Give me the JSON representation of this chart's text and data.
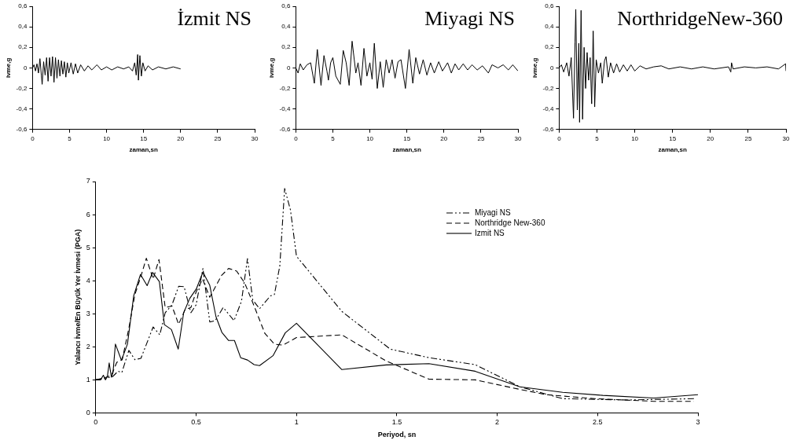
{
  "chart_data": [
    {
      "type": "line",
      "title": "İzmit NS",
      "xlabel": "zaman,sn",
      "ylabel": "ivme,g",
      "marker": "none",
      "xlim": [
        0,
        30
      ],
      "xticks": [
        0,
        5,
        10,
        15,
        20,
        25,
        30
      ],
      "ylim": [
        -0.6,
        0.6
      ],
      "yticks": [
        {
          "value": -0.6,
          "label": "-0,6"
        },
        {
          "value": -0.4,
          "label": "-0,4"
        },
        {
          "value": -0.2,
          "label": "-0,2"
        },
        {
          "value": 0,
          "label": "0"
        },
        {
          "value": 0.2,
          "label": "0,2"
        },
        {
          "value": 0.4,
          "label": "0,4"
        },
        {
          "value": 0.6,
          "label": "0,6"
        }
      ],
      "x": [
        0,
        0.2,
        0.4,
        0.6,
        0.8,
        1.0,
        1.2,
        1.3,
        1.5,
        1.7,
        1.9,
        2.1,
        2.3,
        2.5,
        2.7,
        2.9,
        3.1,
        3.3,
        3.5,
        3.7,
        3.9,
        4.1,
        4.3,
        4.5,
        4.7,
        4.9,
        5.2,
        5.5,
        5.8,
        6.1,
        6.5,
        7,
        7.5,
        8,
        8.7,
        9.3,
        10,
        10.7,
        11.5,
        12.3,
        13,
        13.5,
        13.8,
        14.0,
        14.2,
        14.3,
        14.5,
        14.7,
        14.9,
        15.2,
        15.6,
        16.2,
        17,
        18,
        19,
        20
      ],
      "series": [
        {
          "color": "#000000",
          "values": [
            0,
            0.03,
            -0.03,
            0.04,
            -0.05,
            0.09,
            -0.08,
            -0.16,
            0.06,
            -0.07,
            0.1,
            -0.13,
            0.1,
            -0.08,
            0.11,
            -0.14,
            0.1,
            -0.1,
            0.08,
            -0.08,
            0.07,
            -0.06,
            0.06,
            -0.09,
            0.05,
            -0.05,
            0.05,
            -0.06,
            0.04,
            -0.05,
            0.03,
            -0.03,
            0.02,
            -0.02,
            0.03,
            -0.02,
            0.01,
            -0.02,
            0.01,
            -0.01,
            0.01,
            -0.03,
            0.05,
            -0.07,
            0.13,
            -0.12,
            0.12,
            -0.08,
            0.05,
            -0.03,
            0.02,
            -0.02,
            0.01,
            -0.01,
            0.01,
            -0.01
          ]
        }
      ]
    },
    {
      "type": "line",
      "title": "Miyagi NS",
      "xlabel": "zaman,sn",
      "ylabel": "ivme,g",
      "marker": "none",
      "xlim": [
        0,
        30
      ],
      "xticks": [
        0,
        5,
        10,
        15,
        20,
        25,
        30
      ],
      "ylim": [
        -0.6,
        0.6
      ],
      "yticks": [
        {
          "value": -0.6,
          "label": "-0,6"
        },
        {
          "value": -0.4,
          "label": "-0,4"
        },
        {
          "value": -0.2,
          "label": "-0,2"
        },
        {
          "value": 0,
          "label": "0"
        },
        {
          "value": 0.2,
          "label": "0,2"
        },
        {
          "value": 0.4,
          "label": "0,4"
        },
        {
          "value": 0.6,
          "label": "0,6"
        }
      ],
      "x": [
        0,
        0.3,
        0.6,
        1,
        1.5,
        2,
        2.5,
        2.9,
        3.4,
        3.8,
        4.2,
        4.4,
        4.7,
        5,
        5.4,
        6,
        6.4,
        6.8,
        7.2,
        7.6,
        8.1,
        8.4,
        8.8,
        9.2,
        9.6,
        10,
        10.3,
        10.6,
        11,
        11.4,
        11.8,
        12.2,
        12.6,
        13,
        13.4,
        13.8,
        14.2,
        14.8,
        15.3,
        15.8,
        16.2,
        16.7,
        17.2,
        17.7,
        18.2,
        18.7,
        19.3,
        19.8,
        20.5,
        21,
        21.5,
        22,
        22.6,
        23.2,
        23.8,
        24.5,
        25.2,
        26,
        26.5,
        27.3,
        28,
        28.7,
        29.3,
        30
      ],
      "series": [
        {
          "color": "#000000",
          "values": [
            0,
            -0.05,
            0.04,
            -0.02,
            0.03,
            0.05,
            -0.15,
            0.18,
            -0.17,
            0.12,
            -0.03,
            -0.12,
            0.05,
            0.1,
            -0.08,
            -0.16,
            0.17,
            0.05,
            -0.17,
            0.26,
            -0.05,
            0.05,
            -0.17,
            0.19,
            -0.08,
            0.05,
            -0.11,
            0.24,
            -0.2,
            0.06,
            -0.19,
            0.08,
            -0.05,
            0.08,
            -0.1,
            0.06,
            0.08,
            -0.2,
            0.18,
            -0.15,
            0.1,
            -0.06,
            0.08,
            -0.07,
            0.05,
            -0.05,
            0.06,
            -0.03,
            0.05,
            -0.05,
            0.04,
            -0.02,
            0.04,
            -0.02,
            0.03,
            -0.02,
            0.02,
            -0.05,
            0.03,
            0,
            0.03,
            -0.02,
            0.03,
            -0.03
          ]
        }
      ]
    },
    {
      "type": "line",
      "title": "NorthridgeNew-360",
      "xlabel": "zaman,sn",
      "ylabel": "ivme,g",
      "marker": "none",
      "xlim": [
        0,
        30
      ],
      "xticks": [
        0,
        5,
        10,
        15,
        20,
        25,
        30
      ],
      "ylim": [
        -0.6,
        0.6
      ],
      "yticks": [
        {
          "value": -0.6,
          "label": "-0,6"
        },
        {
          "value": -0.4,
          "label": "-0,4"
        },
        {
          "value": -0.2,
          "label": "-0,2"
        },
        {
          "value": 0,
          "label": "0"
        },
        {
          "value": 0.2,
          "label": "0,2"
        },
        {
          "value": 0.4,
          "label": "0,4"
        },
        {
          "value": 0.6,
          "label": "0,6"
        }
      ],
      "x": [
        0,
        0.3,
        0.6,
        1,
        1.3,
        1.6,
        1.9,
        2.1,
        2.2,
        2.4,
        2.6,
        2.7,
        2.9,
        3.1,
        3.3,
        3.5,
        3.7,
        3.9,
        4.1,
        4.3,
        4.5,
        4.7,
        4.9,
        5.2,
        5.5,
        5.7,
        6,
        6.2,
        6.5,
        6.8,
        7.2,
        7.6,
        8,
        8.5,
        9,
        9.5,
        10,
        10.7,
        11.5,
        12.5,
        13.5,
        14.5,
        16,
        17.5,
        19,
        20.5,
        22.4,
        22.7,
        22.8,
        23,
        24.5,
        26,
        27.5,
        29,
        29.95,
        30
      ],
      "series": [
        {
          "color": "#000000",
          "values": [
            0,
            0.03,
            -0.04,
            0.05,
            -0.08,
            0.1,
            -0.49,
            0.25,
            0.57,
            -0.41,
            0.24,
            -0.53,
            0.56,
            -0.5,
            0.2,
            -0.2,
            0.15,
            -0.12,
            0.1,
            -0.35,
            0.36,
            -0.38,
            0.08,
            -0.05,
            0.05,
            -0.15,
            0.07,
            0.11,
            -0.09,
            0.05,
            -0.05,
            0.04,
            -0.04,
            0.03,
            -0.03,
            0.03,
            -0.03,
            0.02,
            -0.01,
            0.01,
            0.02,
            -0.01,
            0.01,
            -0.01,
            0.01,
            -0.01,
            0.01,
            -0.04,
            0.05,
            -0.01,
            0.01,
            0,
            0.01,
            -0.01,
            0.04,
            -0.03
          ]
        }
      ]
    },
    {
      "type": "line",
      "xlabel": "Periyod, sn",
      "ylabel": "Yalancı İvme/En Büyük Yer İvmesi (PGA)",
      "marker": "none",
      "legend": "top right",
      "xlim": [
        0,
        3
      ],
      "xticks": [
        0,
        0.5,
        1,
        1.5,
        2,
        2.5,
        3
      ],
      "ylim": [
        0,
        7
      ],
      "yticks": [
        0,
        1,
        2,
        3,
        4,
        5,
        6,
        7
      ],
      "series": [
        {
          "name": "Miyagi NS",
          "color": "#000000",
          "line_style": "dotted",
          "x": [
            0,
            0.058,
            0.085,
            0.111,
            0.13,
            0.165,
            0.195,
            0.225,
            0.286,
            0.319,
            0.346,
            0.38,
            0.413,
            0.44,
            0.474,
            0.5,
            0.534,
            0.568,
            0.595,
            0.635,
            0.689,
            0.726,
            0.756,
            0.782,
            0.816,
            0.87,
            0.89,
            0.917,
            0.941,
            0.97,
            1.0,
            1.226,
            1.467,
            1.66,
            1.89,
            2.113,
            2.326,
            2.65,
            2.98
          ],
          "values": [
            1.0,
            1.06,
            1.1,
            1.26,
            1.22,
            1.89,
            1.61,
            1.65,
            2.6,
            2.36,
            3.03,
            3.27,
            3.83,
            3.82,
            3.03,
            3.27,
            4.37,
            2.75,
            2.79,
            3.19,
            2.79,
            3.38,
            4.67,
            3.42,
            3.15,
            3.54,
            3.58,
            4.45,
            6.79,
            6.14,
            4.74,
            3.07,
            1.93,
            1.67,
            1.46,
            0.79,
            0.43,
            0.39,
            0.43
          ]
        },
        {
          "name": "Northridge New-360",
          "color": "#000000",
          "line_style": "dashed",
          "x": [
            0,
            0.044,
            0.078,
            0.105,
            0.132,
            0.165,
            0.195,
            0.225,
            0.252,
            0.286,
            0.315,
            0.346,
            0.38,
            0.413,
            0.444,
            0.474,
            0.5,
            0.532,
            0.568,
            0.628,
            0.662,
            0.702,
            0.742,
            0.782,
            0.843,
            0.89,
            0.933,
            1.0,
            1.226,
            1.447,
            1.66,
            1.89,
            2.113,
            2.246,
            2.486,
            2.78,
            2.98
          ],
          "values": [
            1.0,
            1.06,
            1.14,
            1.53,
            1.61,
            2.56,
            3.58,
            4.13,
            4.68,
            4.05,
            4.64,
            3.19,
            3.23,
            2.68,
            3.11,
            3.19,
            3.66,
            4.05,
            3.5,
            4.17,
            4.37,
            4.29,
            3.93,
            3.34,
            2.4,
            2.08,
            2.05,
            2.28,
            2.36,
            1.57,
            1.02,
            1.0,
            0.71,
            0.55,
            0.43,
            0.35,
            0.35
          ]
        },
        {
          "name": "Izmit NS",
          "color": "#000000",
          "line_style": "solid",
          "x": [
            0,
            0.024,
            0.038,
            0.048,
            0.058,
            0.067,
            0.078,
            0.086,
            0.098,
            0.128,
            0.158,
            0.189,
            0.223,
            0.256,
            0.283,
            0.317,
            0.342,
            0.377,
            0.411,
            0.438,
            0.468,
            0.501,
            0.534,
            0.568,
            0.599,
            0.628,
            0.662,
            0.691,
            0.722,
            0.756,
            0.789,
            0.816,
            0.883,
            0.944,
            1.0,
            1.226,
            1.447,
            1.66,
            1.89,
            2.113,
            2.326,
            2.526,
            2.78,
            3.0
          ],
          "values": [
            1.0,
            1.0,
            1.14,
            1.0,
            1.1,
            1.51,
            1.08,
            1.22,
            2.08,
            1.59,
            2.08,
            3.54,
            4.19,
            3.85,
            4.25,
            3.97,
            2.67,
            2.52,
            1.93,
            3.03,
            3.46,
            3.75,
            4.26,
            3.86,
            2.91,
            2.44,
            2.19,
            2.19,
            1.67,
            1.6,
            1.46,
            1.43,
            1.73,
            2.42,
            2.71,
            1.31,
            1.45,
            1.49,
            1.26,
            0.79,
            0.62,
            0.53,
            0.45,
            0.55
          ]
        }
      ]
    }
  ]
}
